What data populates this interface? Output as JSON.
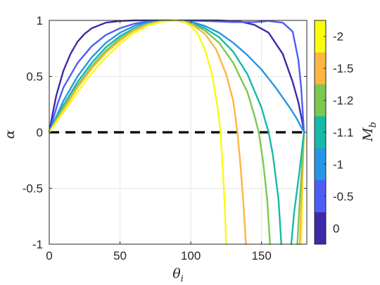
{
  "chart_data": {
    "type": "line",
    "xlabel": "θ",
    "xlabel_sub": "i",
    "ylabel": "α",
    "xlim": [
      0,
      182
    ],
    "ylim": [
      -1,
      1
    ],
    "x_ticks": [
      0,
      50,
      100,
      150
    ],
    "x_tick_labels": [
      "0",
      "50",
      "100",
      "150"
    ],
    "y_ticks": [
      1,
      0.5,
      0,
      -0.5,
      -1
    ],
    "y_tick_labels": [
      "1",
      "0.5",
      "0",
      "-0.5",
      "-1"
    ],
    "grid": true,
    "reference_line": {
      "y": 0,
      "style": "dashed",
      "color": "#000000"
    },
    "colorbar": {
      "label": "M",
      "label_sub": "b",
      "labels": [
        "-2",
        "-1.5",
        "-1.2",
        "-1.1",
        "-1",
        "-0.5",
        "0"
      ],
      "colors": [
        "#f9fb0e",
        "#fdb641",
        "#7bc94e",
        "#17b9a9",
        "#2596e6",
        "#4d5ef7",
        "#3e2aa8"
      ]
    },
    "series": [
      {
        "color": "#3e2aa8",
        "points": [
          [
            0,
            0
          ],
          [
            2,
            0.14
          ],
          [
            5,
            0.33
          ],
          [
            10,
            0.55
          ],
          [
            15,
            0.7
          ],
          [
            20,
            0.81
          ],
          [
            25,
            0.88
          ],
          [
            30,
            0.93
          ],
          [
            40,
            0.98
          ],
          [
            50,
            0.995
          ],
          [
            60,
            1.0
          ],
          [
            90,
            1.0
          ],
          [
            120,
            1.0
          ],
          [
            135,
            0.99
          ],
          [
            145,
            0.96
          ],
          [
            155,
            0.89
          ],
          [
            165,
            0.7
          ],
          [
            172,
            0.45
          ],
          [
            176,
            0.27
          ],
          [
            179,
            0.08
          ],
          [
            180,
            0
          ]
        ]
      },
      {
        "color": "#4d5ef7",
        "points": [
          [
            0,
            0
          ],
          [
            3,
            0.13
          ],
          [
            6,
            0.26
          ],
          [
            10,
            0.4
          ],
          [
            20,
            0.62
          ],
          [
            30,
            0.77
          ],
          [
            40,
            0.87
          ],
          [
            50,
            0.93
          ],
          [
            60,
            0.97
          ],
          [
            70,
            0.99
          ],
          [
            80,
            1.0
          ],
          [
            90,
            1.0
          ],
          [
            110,
            0.995
          ],
          [
            130,
            0.985
          ],
          [
            145,
            0.985
          ],
          [
            155,
            0.995
          ],
          [
            165,
            0.98
          ],
          [
            172,
            0.9
          ],
          [
            176,
            0.65
          ],
          [
            178,
            0.4
          ],
          [
            180,
            0
          ]
        ]
      },
      {
        "color": "#2596e6",
        "points": [
          [
            0,
            0
          ],
          [
            5,
            0.14
          ],
          [
            10,
            0.28
          ],
          [
            20,
            0.5
          ],
          [
            30,
            0.67
          ],
          [
            40,
            0.8
          ],
          [
            50,
            0.89
          ],
          [
            60,
            0.95
          ],
          [
            70,
            0.985
          ],
          [
            80,
            0.998
          ],
          [
            90,
            1.0
          ],
          [
            100,
            0.99
          ],
          [
            110,
            0.95
          ],
          [
            120,
            0.89
          ],
          [
            130,
            0.8
          ],
          [
            140,
            0.69
          ],
          [
            150,
            0.56
          ],
          [
            160,
            0.4
          ],
          [
            170,
            0.22
          ],
          [
            175,
            0.12
          ],
          [
            180,
            0
          ]
        ]
      },
      {
        "color": "#17b9a9",
        "points": [
          [
            0,
            0
          ],
          [
            5,
            0.12
          ],
          [
            10,
            0.24
          ],
          [
            20,
            0.45
          ],
          [
            30,
            0.62
          ],
          [
            40,
            0.76
          ],
          [
            50,
            0.86
          ],
          [
            60,
            0.93
          ],
          [
            70,
            0.97
          ],
          [
            80,
            0.995
          ],
          [
            90,
            1.0
          ],
          [
            100,
            0.98
          ],
          [
            110,
            0.93
          ],
          [
            120,
            0.85
          ],
          [
            130,
            0.72
          ],
          [
            140,
            0.52
          ],
          [
            150,
            0.22
          ],
          [
            155,
            0.0
          ],
          [
            158,
            -0.2
          ],
          [
            162,
            -0.6
          ],
          [
            164,
            -1.0
          ]
        ]
      },
      {
        "color": "#7bc94e",
        "points": [
          [
            0,
            0
          ],
          [
            5,
            0.11
          ],
          [
            10,
            0.22
          ],
          [
            20,
            0.42
          ],
          [
            30,
            0.59
          ],
          [
            40,
            0.73
          ],
          [
            50,
            0.84
          ],
          [
            60,
            0.92
          ],
          [
            70,
            0.97
          ],
          [
            80,
            0.995
          ],
          [
            90,
            1.0
          ],
          [
            100,
            0.975
          ],
          [
            110,
            0.91
          ],
          [
            120,
            0.8
          ],
          [
            130,
            0.62
          ],
          [
            140,
            0.36
          ],
          [
            145,
            0.15
          ],
          [
            148,
            0.0
          ],
          [
            151,
            -0.25
          ],
          [
            154,
            -0.6
          ],
          [
            156,
            -1.0
          ]
        ]
      },
      {
        "color": "#fdb641",
        "points": [
          [
            0,
            0
          ],
          [
            5,
            0.1
          ],
          [
            10,
            0.2
          ],
          [
            20,
            0.4
          ],
          [
            30,
            0.57
          ],
          [
            40,
            0.71
          ],
          [
            50,
            0.82
          ],
          [
            60,
            0.91
          ],
          [
            70,
            0.965
          ],
          [
            80,
            0.992
          ],
          [
            90,
            1.0
          ],
          [
            100,
            0.97
          ],
          [
            110,
            0.88
          ],
          [
            118,
            0.74
          ],
          [
            125,
            0.52
          ],
          [
            130,
            0.28
          ],
          [
            133,
            0.0
          ],
          [
            135,
            -0.28
          ],
          [
            137,
            -0.6
          ],
          [
            139,
            -1.0
          ]
        ]
      },
      {
        "color": "#f9fb0e",
        "points": [
          [
            0,
            0
          ],
          [
            5,
            0.09
          ],
          [
            10,
            0.18
          ],
          [
            20,
            0.36
          ],
          [
            30,
            0.53
          ],
          [
            40,
            0.67
          ],
          [
            50,
            0.79
          ],
          [
            60,
            0.89
          ],
          [
            70,
            0.955
          ],
          [
            80,
            0.99
          ],
          [
            90,
            1.0
          ],
          [
            95,
            0.99
          ],
          [
            100,
            0.95
          ],
          [
            105,
            0.88
          ],
          [
            110,
            0.74
          ],
          [
            115,
            0.52
          ],
          [
            119,
            0.22
          ],
          [
            121,
            0.0
          ],
          [
            122.5,
            -0.3
          ],
          [
            124,
            -0.65
          ],
          [
            125,
            -1.0
          ]
        ]
      },
      {
        "color": "#f9fb0e",
        "points": [
          [
            180,
            0
          ],
          [
            179.3,
            -0.3
          ],
          [
            178.7,
            -0.6
          ],
          [
            178,
            -1.0
          ]
        ]
      },
      {
        "color": "#fdb641",
        "points": [
          [
            180,
            0
          ],
          [
            179.1,
            -0.3
          ],
          [
            178.2,
            -0.6
          ],
          [
            177,
            -1.0
          ]
        ]
      },
      {
        "color": "#7bc94e",
        "points": [
          [
            180,
            0
          ],
          [
            178.6,
            -0.3
          ],
          [
            176.8,
            -0.65
          ],
          [
            175.3,
            -1.0
          ]
        ]
      },
      {
        "color": "#17b9a9",
        "points": [
          [
            180,
            0
          ],
          [
            176.8,
            -0.35
          ],
          [
            173,
            -0.72
          ],
          [
            171,
            -1.0
          ]
        ]
      }
    ]
  }
}
